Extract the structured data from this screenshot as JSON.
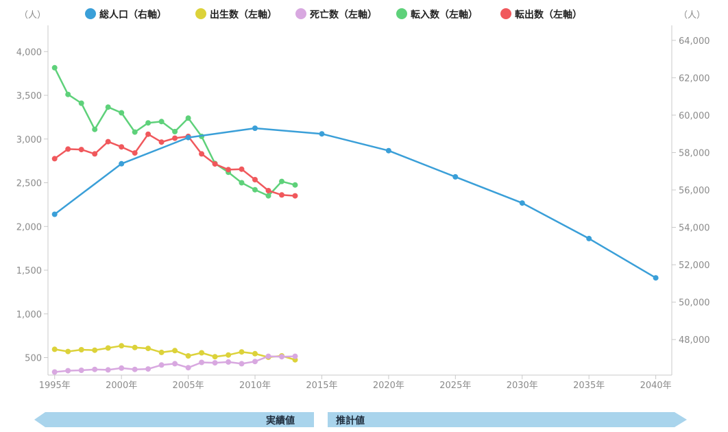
{
  "chart_data": {
    "type": "line",
    "unit_left": "（人）",
    "unit_right": "（人）",
    "y_left": {
      "min": 300,
      "max": 4300,
      "ticks": [
        500,
        1000,
        1500,
        2000,
        2500,
        3000,
        3500,
        4000
      ],
      "tick_labels": [
        "500",
        "1,000",
        "1,500",
        "2,000",
        "2,500",
        "3,000",
        "3,500",
        "4,000"
      ]
    },
    "y_right": {
      "min": 46100,
      "max": 64800,
      "ticks": [
        48000,
        50000,
        52000,
        54000,
        56000,
        58000,
        60000,
        62000,
        64000
      ],
      "tick_labels": [
        "48,000",
        "50,000",
        "52,000",
        "54,000",
        "56,000",
        "58,000",
        "60,000",
        "62,000",
        "64,000"
      ]
    },
    "x": {
      "min": 1994.5,
      "max": 2041.2,
      "ticks": [
        1995,
        2000,
        2005,
        2010,
        2015,
        2020,
        2025,
        2030,
        2035,
        2040
      ],
      "tick_labels": [
        "1995年",
        "2000年",
        "2005年",
        "2010年",
        "2015年",
        "2020年",
        "2025年",
        "2030年",
        "2035年",
        "2040年"
      ]
    },
    "series": [
      {
        "name": "総人口（右軸）",
        "axis": "right",
        "color": "#3a9fd8",
        "x": [
          1995,
          2000,
          2005,
          2010,
          2015,
          2020,
          2025,
          2030,
          2035,
          2040
        ],
        "values": [
          54700,
          57400,
          58800,
          59300,
          59000,
          58100,
          56700,
          55300,
          53400,
          51300
        ]
      },
      {
        "name": "出生数（左軸）",
        "axis": "left",
        "color": "#dcd23a",
        "x": [
          1995,
          1996,
          1997,
          1998,
          1999,
          2000,
          2001,
          2002,
          2003,
          2004,
          2005,
          2006,
          2007,
          2008,
          2009,
          2010,
          2011,
          2012,
          2013
        ],
        "values": [
          595,
          570,
          590,
          585,
          610,
          635,
          615,
          605,
          560,
          580,
          520,
          555,
          510,
          530,
          565,
          545,
          505,
          520,
          475
        ]
      },
      {
        "name": "死亡数（左軸）",
        "axis": "left",
        "color": "#d8a8e0",
        "x": [
          1995,
          1996,
          1997,
          1998,
          1999,
          2000,
          2001,
          2002,
          2003,
          2004,
          2005,
          2006,
          2007,
          2008,
          2009,
          2010,
          2011,
          2012,
          2013
        ],
        "values": [
          335,
          350,
          355,
          365,
          360,
          380,
          365,
          370,
          415,
          430,
          385,
          445,
          440,
          450,
          430,
          455,
          515,
          510,
          515
        ]
      },
      {
        "name": "転入数（左軸）",
        "axis": "left",
        "color": "#5ed17a",
        "x": [
          1995,
          1996,
          1997,
          1998,
          1999,
          2000,
          2001,
          2002,
          2003,
          2004,
          2005,
          2006,
          2007,
          2008,
          2009,
          2010,
          2011,
          2012,
          2013
        ],
        "values": [
          3815,
          3510,
          3410,
          3110,
          3365,
          3300,
          3080,
          3185,
          3200,
          3085,
          3240,
          3030,
          2720,
          2620,
          2500,
          2420,
          2350,
          2515,
          2475
        ]
      },
      {
        "name": "転出数（左軸）",
        "axis": "left",
        "color": "#f0585c",
        "x": [
          1995,
          1996,
          1997,
          1998,
          1999,
          2000,
          2001,
          2002,
          2003,
          2004,
          2005,
          2006,
          2007,
          2008,
          2009,
          2010,
          2011,
          2012,
          2013
        ],
        "values": [
          2775,
          2885,
          2880,
          2830,
          2970,
          2910,
          2840,
          3055,
          2965,
          3010,
          3030,
          2830,
          2715,
          2650,
          2655,
          2535,
          2410,
          2360,
          2350
        ]
      }
    ],
    "legend": "top",
    "grid": false,
    "bands": {
      "actual_label": "実績値",
      "forecast_label": "推計値"
    }
  }
}
